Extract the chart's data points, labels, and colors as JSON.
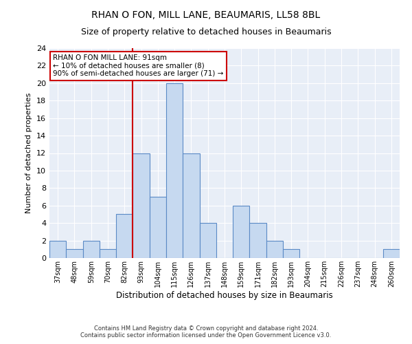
{
  "title": "RHAN O FON, MILL LANE, BEAUMARIS, LL58 8BL",
  "subtitle": "Size of property relative to detached houses in Beaumaris",
  "xlabel": "Distribution of detached houses by size in Beaumaris",
  "ylabel": "Number of detached properties",
  "categories": [
    "37sqm",
    "48sqm",
    "59sqm",
    "70sqm",
    "82sqm",
    "93sqm",
    "104sqm",
    "115sqm",
    "126sqm",
    "137sqm",
    "148sqm",
    "159sqm",
    "171sqm",
    "182sqm",
    "193sqm",
    "204sqm",
    "215sqm",
    "226sqm",
    "237sqm",
    "248sqm",
    "260sqm"
  ],
  "values": [
    2,
    1,
    2,
    1,
    5,
    12,
    7,
    20,
    12,
    4,
    0,
    6,
    4,
    2,
    1,
    0,
    0,
    0,
    0,
    0,
    1
  ],
  "bar_color": "#c6d9f0",
  "bar_edge_color": "#5a8ac6",
  "red_line_index": 5,
  "annotation_text": "RHAN O FON MILL LANE: 91sqm\n← 10% of detached houses are smaller (8)\n90% of semi-detached houses are larger (71) →",
  "annotation_box_color": "#ffffff",
  "annotation_box_edge_color": "#cc0000",
  "red_line_color": "#cc0000",
  "ylim": [
    0,
    24
  ],
  "yticks": [
    0,
    2,
    4,
    6,
    8,
    10,
    12,
    14,
    16,
    18,
    20,
    22,
    24
  ],
  "bg_color": "#e8eef7",
  "grid_color": "#ffffff",
  "footer_line1": "Contains HM Land Registry data © Crown copyright and database right 2024.",
  "footer_line2": "Contains public sector information licensed under the Open Government Licence v3.0."
}
